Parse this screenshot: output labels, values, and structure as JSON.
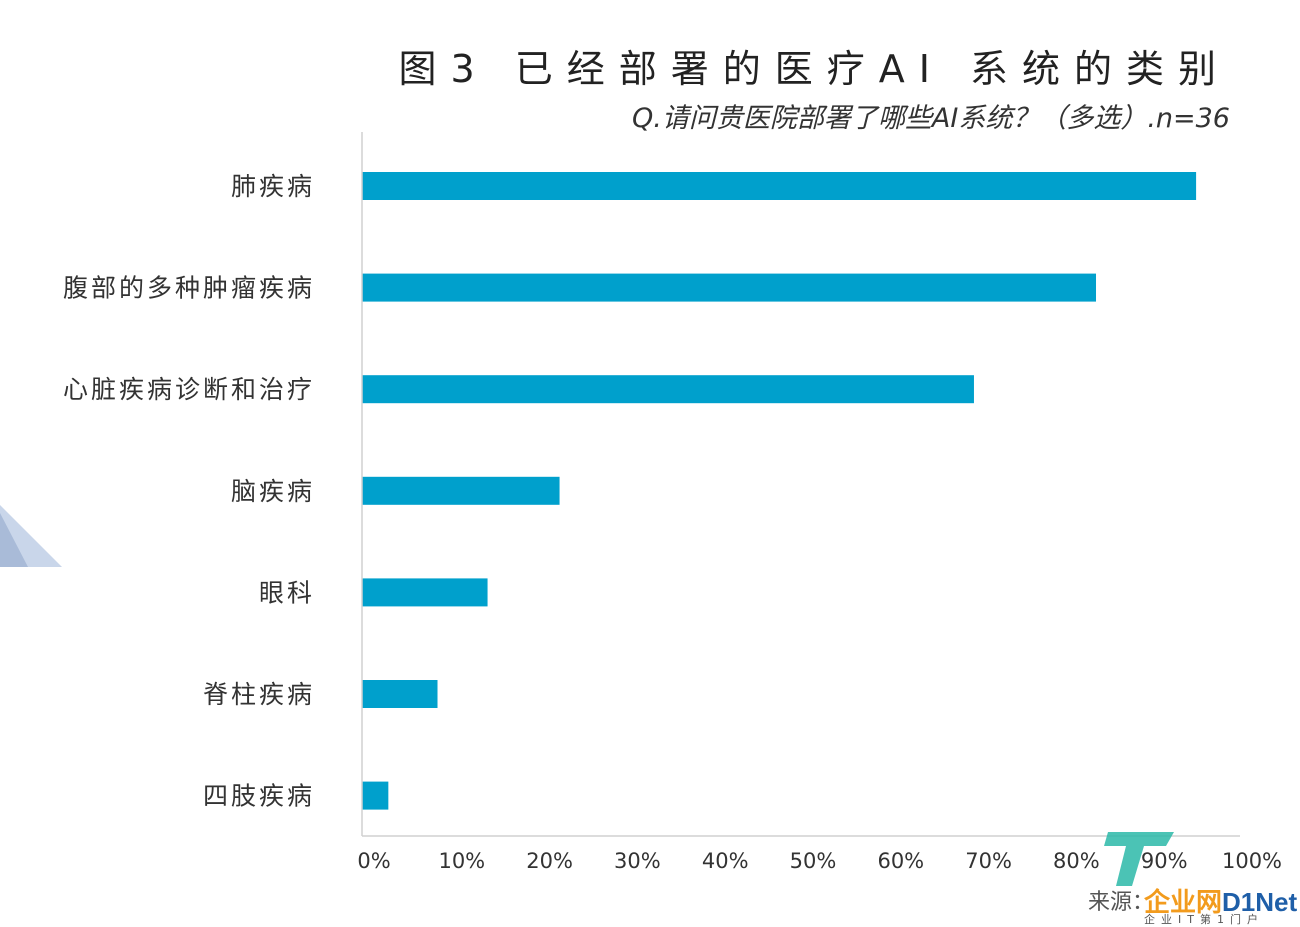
{
  "title": "图3  已经部署的医疗AI 系统的类别",
  "subtitle": "Q.请问贵医院部署了哪些AI系统？（多选）.n=36",
  "chart_data": {
    "type": "bar",
    "orientation": "horizontal",
    "categories": [
      "肺疾病",
      "腹部的多种肿瘤疾病",
      "心脏疾病诊断和治疗",
      "脑疾病",
      "眼科",
      "脊柱疾病",
      "四肢疾病"
    ],
    "values": [
      95,
      83.6,
      69.7,
      22.5,
      14.3,
      8.6,
      3
    ],
    "xlim": [
      0,
      100
    ],
    "xticks": [
      "0%",
      "10%",
      "20%",
      "30%",
      "40%",
      "50%",
      "60%",
      "70%",
      "80%",
      "90%",
      "100%"
    ],
    "bar_color": "#00a0cc",
    "grid": false
  },
  "source_label": "来源：",
  "watermark": {
    "brand_cn": "企业网",
    "brand_en": "D1Net",
    "tagline": "企业IT第1门户"
  }
}
